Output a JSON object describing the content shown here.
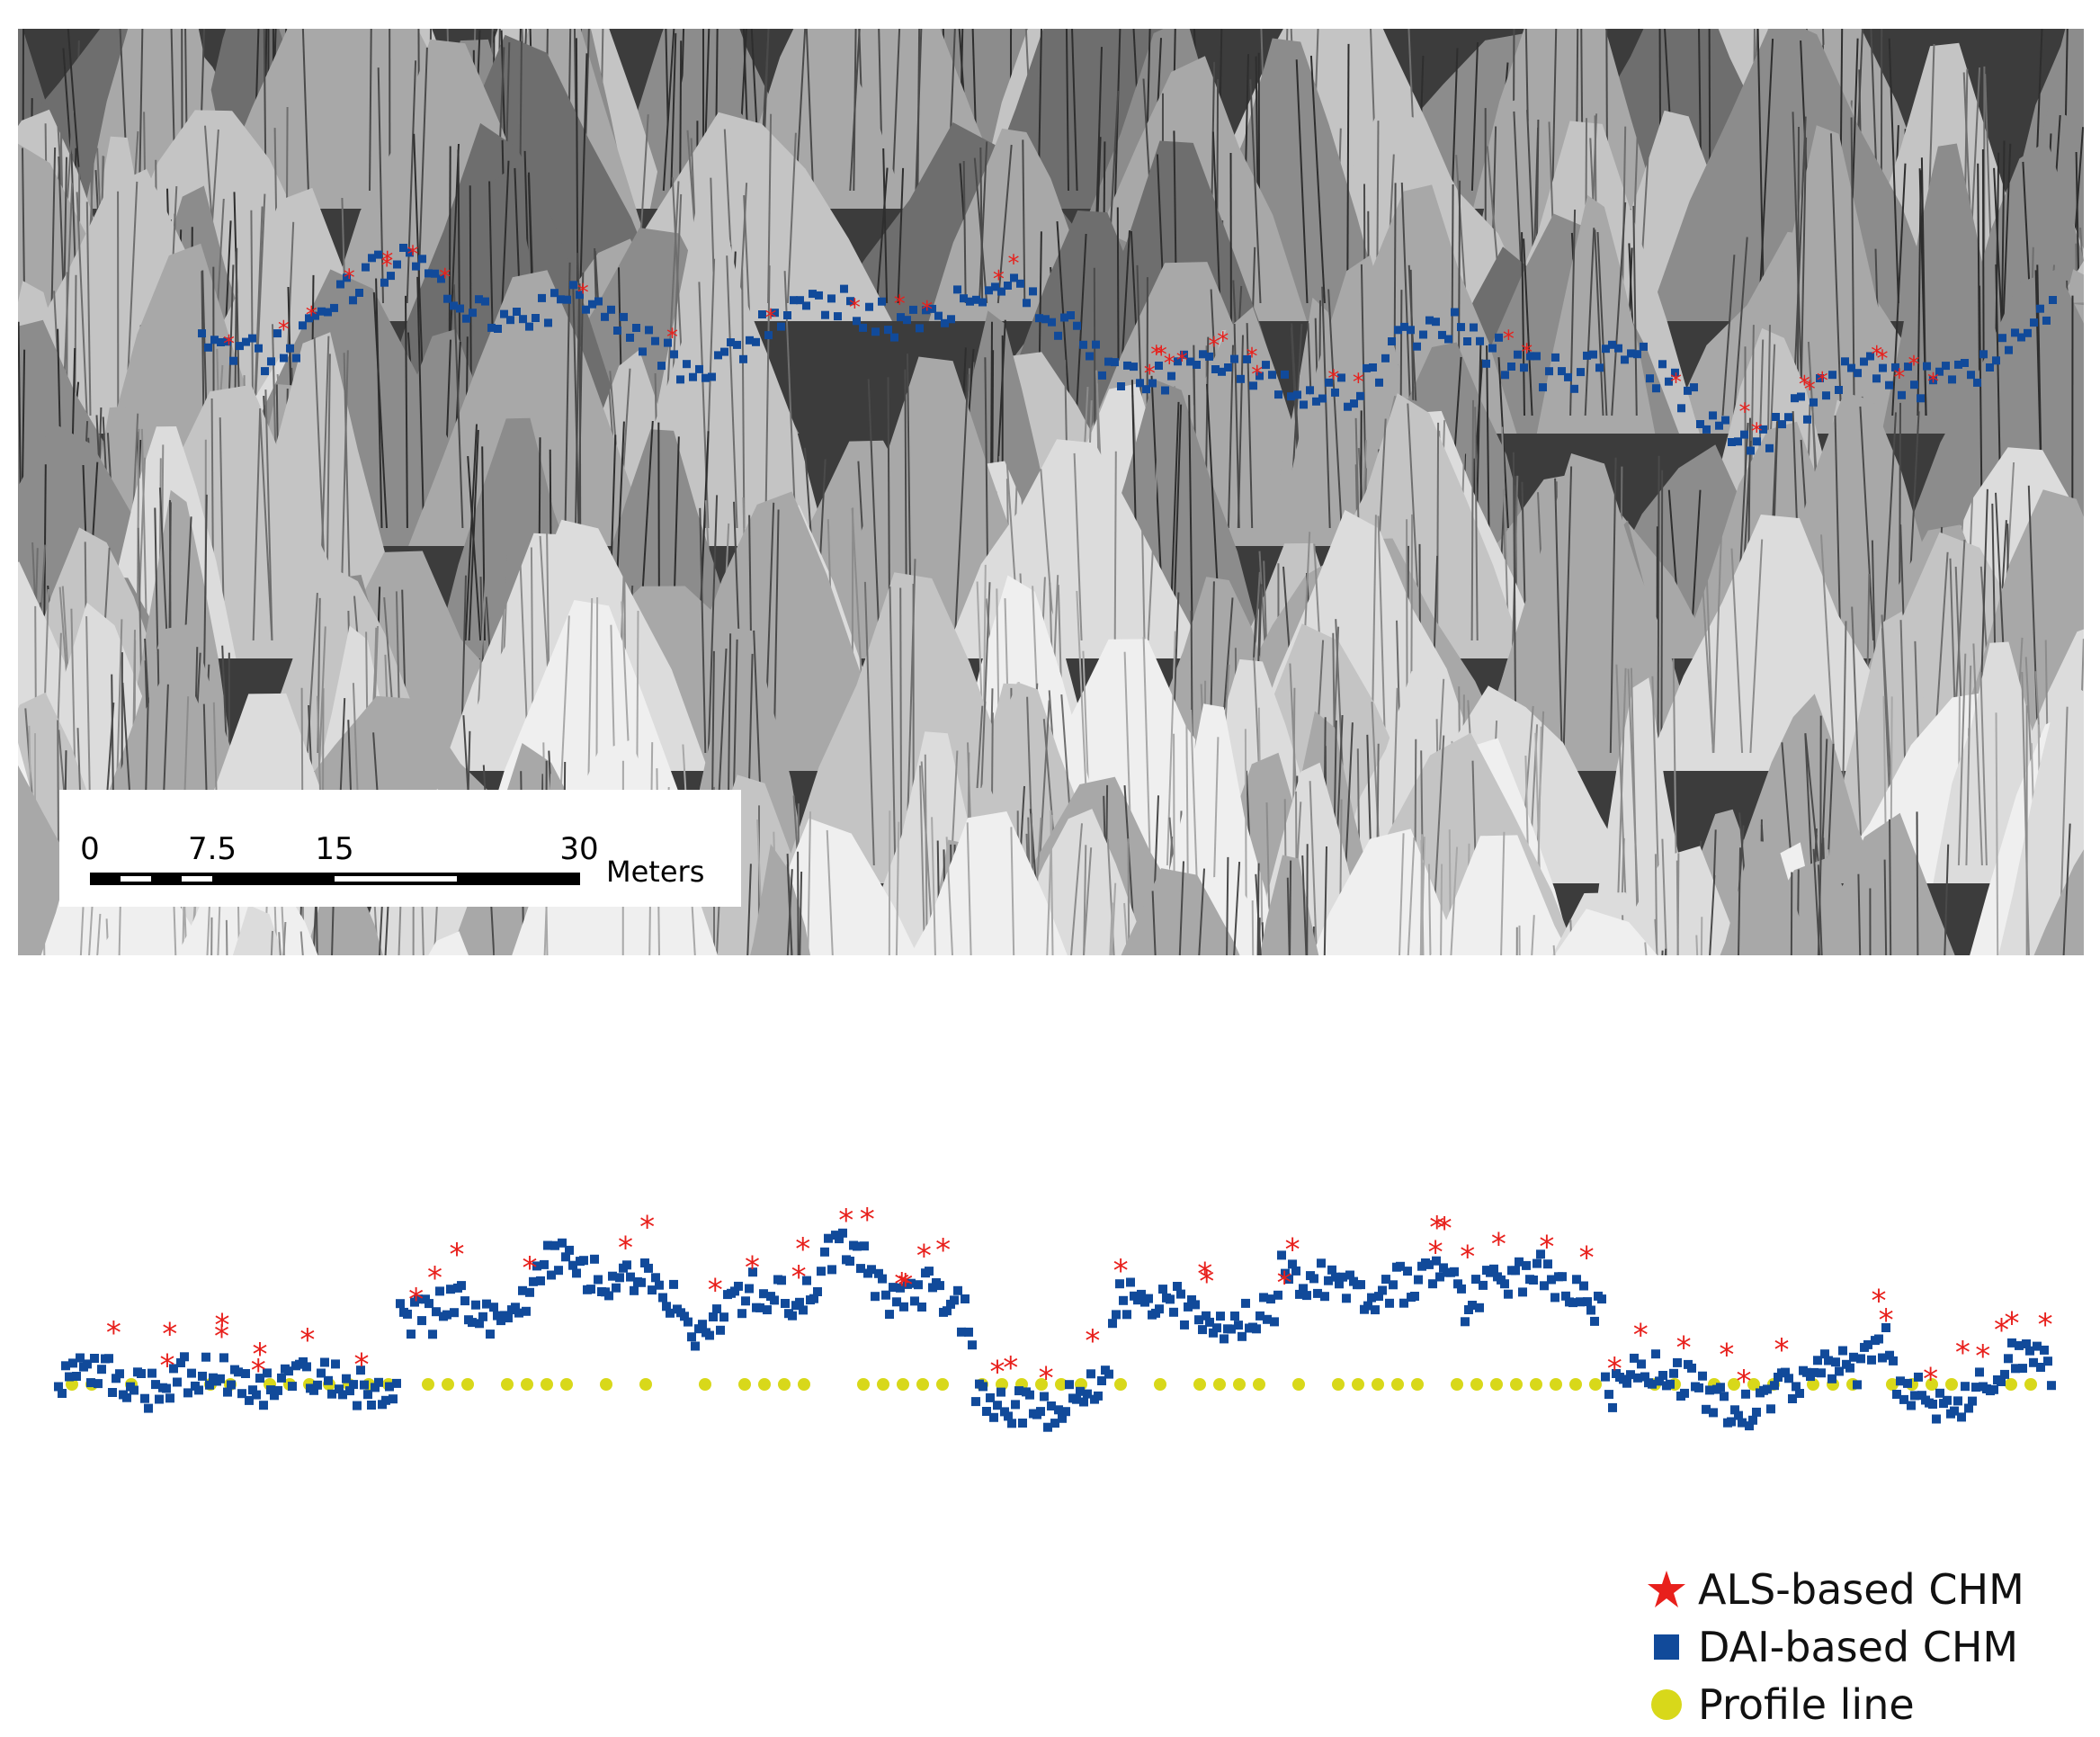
{
  "scale_bar": {
    "ticks": [
      {
        "label": "0",
        "value": 0
      },
      {
        "label": "7.5",
        "value": 7.5
      },
      {
        "label": "15",
        "value": 15
      },
      {
        "label": "30",
        "value": 30
      }
    ],
    "units": "Meters"
  },
  "legend": [
    {
      "label": "ALS-based CHM",
      "marker": "star-icon",
      "color": "#e8201c"
    },
    {
      "label": "DAI-based CHM",
      "marker": "square-icon",
      "color": "#114a9a"
    },
    {
      "label": "Profile line",
      "marker": "circle-icon",
      "color": "#d8d81a"
    }
  ],
  "colors": {
    "als": "#e8201c",
    "dai": "#114a9a",
    "profile": "#d8d81a",
    "terrain_dark": "#3c3c3c",
    "terrain_light": "#f2f2f2"
  }
}
